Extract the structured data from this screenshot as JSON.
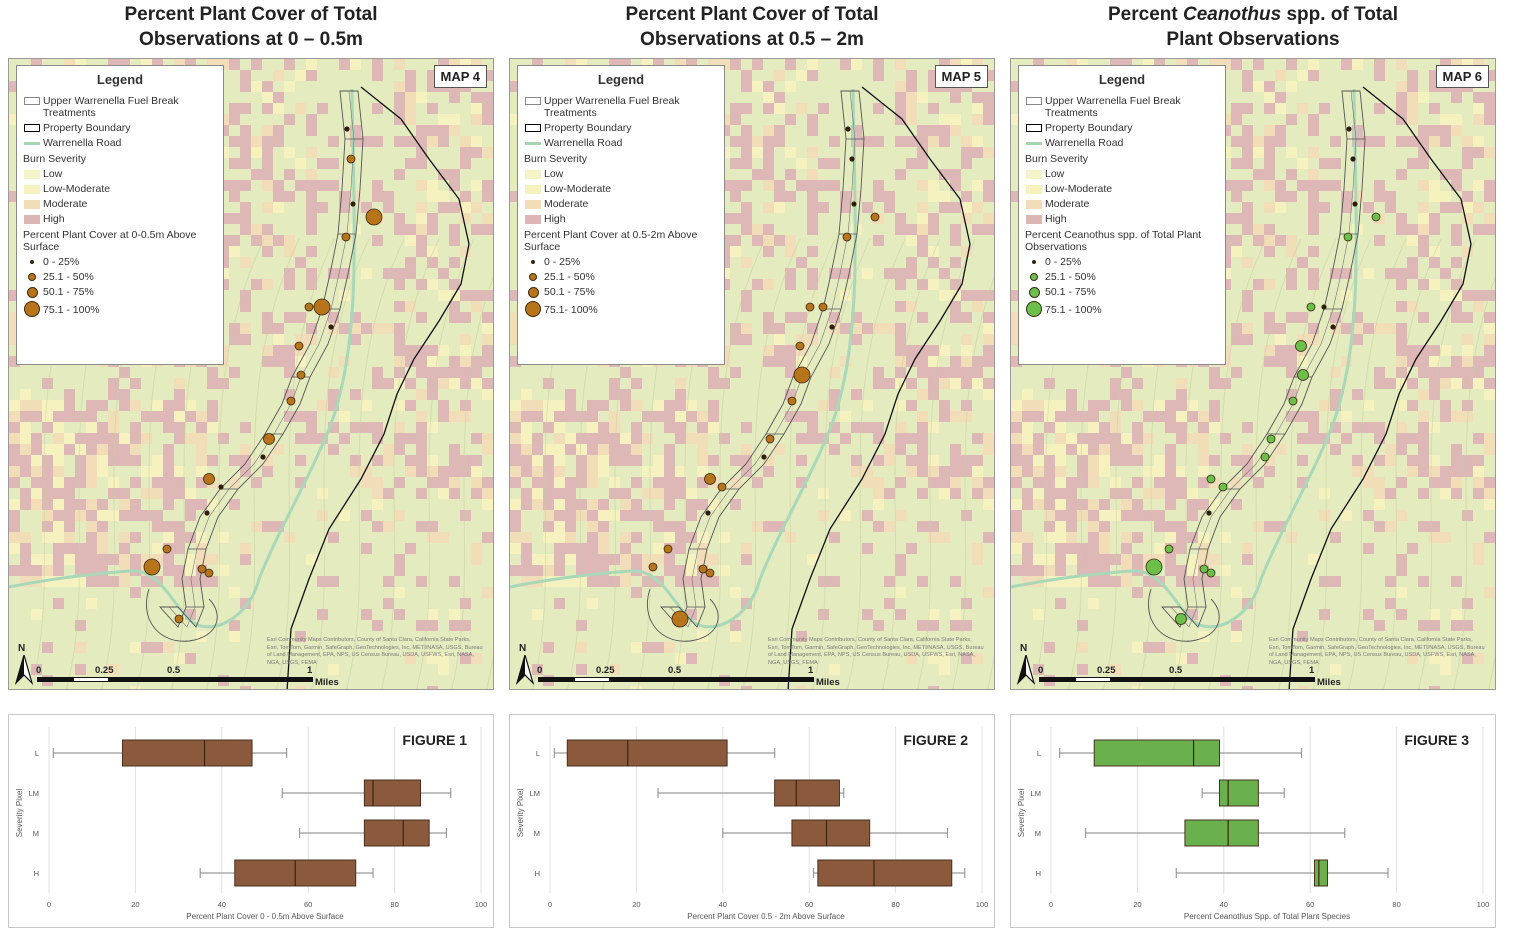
{
  "colors": {
    "brown_fill": "#8b5a3c",
    "green_fill": "#6ab04c",
    "dot_brown": "#b8741a",
    "dot_green": "#6cc04a",
    "sev_low": "#f4f4c8",
    "sev_lowmod": "#f6f2c0",
    "sev_moderate": "#f1ddb8",
    "sev_high": "#dcb5b5"
  },
  "shared_legend": {
    "title": "Legend",
    "fuel_break": "Upper Warrenella Fuel Break Treatments",
    "property": "Property Boundary",
    "road": "Warrenella Road",
    "burn_title": "Burn Severity",
    "burn": [
      "Low",
      "Low-Moderate",
      "Moderate",
      "High"
    ]
  },
  "scalebar": {
    "ticks": [
      "0",
      "0.25",
      "0.5",
      "1"
    ],
    "unit": "Miles"
  },
  "north_label": "N",
  "attribution": "Esri Community Maps Contributors, County of Santa Clara, California State Parks, Esri, TomTom, Garmin, SafeGraph, GeoTechnologies, Inc, METI/NASA, USGS, Bureau of Land Management, EPA, NPS, US Census Bureau, USDA, USFWS, Esri, NASA, NGA, USGS, FEMA",
  "panels": [
    {
      "title_line1": "Percent Plant Cover of Total",
      "title_line2": "Observations at 0 –  0.5m",
      "title_pre": "",
      "title_ital": "",
      "title_post": "",
      "map_label": "MAP 4",
      "point_color": "#b8741a",
      "points_title": "Percent Plant Cover at 0-0.5m Above Surface",
      "point_classes": [
        "0 - 25%",
        "25.1 - 50%",
        "50.1 - 75%",
        "75.1 - 100%"
      ],
      "observations": [
        {
          "site": 1,
          "cls": 0
        },
        {
          "site": 2,
          "cls": 1
        },
        {
          "site": 3,
          "cls": 0
        },
        {
          "site": 4,
          "cls": 3
        },
        {
          "site": 5,
          "cls": 1
        },
        {
          "site": 6,
          "cls": 1
        },
        {
          "site": 7,
          "cls": 3
        },
        {
          "site": 8,
          "cls": 0
        },
        {
          "site": 9,
          "cls": 1
        },
        {
          "site": 10,
          "cls": 1
        },
        {
          "site": 11,
          "cls": 1
        },
        {
          "site": 12,
          "cls": 2
        },
        {
          "site": 13,
          "cls": 0
        },
        {
          "site": 14,
          "cls": 2
        },
        {
          "site": 15,
          "cls": 0
        },
        {
          "site": 16,
          "cls": 0
        },
        {
          "site": 17,
          "cls": 1
        },
        {
          "site": 18,
          "cls": 3
        },
        {
          "site": 19,
          "cls": 1
        },
        {
          "site": 20,
          "cls": 1
        },
        {
          "site": 21,
          "cls": 1
        }
      ],
      "figure": {
        "label": "FIGURE 1",
        "fill": "#8b5a3c",
        "xlabel": "Percent Plant Cover 0 - 0.5m Above Surface",
        "ylabel": "Severity Pixel",
        "categories": [
          "L",
          "LM",
          "M",
          "H"
        ],
        "xlim": [
          0,
          100
        ],
        "xticks": [
          "0",
          "20",
          "40",
          "60",
          "80",
          "100"
        ],
        "boxes": [
          {
            "min": 1,
            "q1": 17,
            "median": 36,
            "q3": 47,
            "max": 55
          },
          {
            "min": 54,
            "q1": 73,
            "median": 75,
            "q3": 86,
            "max": 93
          },
          {
            "min": 58,
            "q1": 73,
            "median": 82,
            "q3": 88,
            "max": 92
          },
          {
            "min": 35,
            "q1": 43,
            "median": 57,
            "q3": 71,
            "max": 75
          }
        ]
      }
    },
    {
      "title_line1": "Percent Plant Cover of Total",
      "title_line2": "Observations at 0.5 –  2m",
      "title_pre": "",
      "title_ital": "",
      "title_post": "",
      "map_label": "MAP 5",
      "point_color": "#b8741a",
      "points_title": "Percent Plant Cover at 0.5-2m Above Surface",
      "point_classes": [
        "0 - 25%",
        "25.1 - 50%",
        "50.1 - 75%",
        "75.1- 100%"
      ],
      "observations": [
        {
          "site": 1,
          "cls": 0
        },
        {
          "site": 2,
          "cls": 0
        },
        {
          "site": 3,
          "cls": 0
        },
        {
          "site": 4,
          "cls": 1
        },
        {
          "site": 5,
          "cls": 1
        },
        {
          "site": 6,
          "cls": 1
        },
        {
          "site": 7,
          "cls": 1
        },
        {
          "site": 8,
          "cls": 0
        },
        {
          "site": 9,
          "cls": 1
        },
        {
          "site": 10,
          "cls": 3
        },
        {
          "site": 11,
          "cls": 1
        },
        {
          "site": 12,
          "cls": 1
        },
        {
          "site": 13,
          "cls": 0
        },
        {
          "site": 14,
          "cls": 2
        },
        {
          "site": 15,
          "cls": 1
        },
        {
          "site": 16,
          "cls": 0
        },
        {
          "site": 17,
          "cls": 1
        },
        {
          "site": 18,
          "cls": 1
        },
        {
          "site": 19,
          "cls": 1
        },
        {
          "site": 20,
          "cls": 1
        },
        {
          "site": 21,
          "cls": 3
        }
      ],
      "figure": {
        "label": "FIGURE 2",
        "fill": "#8b5a3c",
        "xlabel": "Percent Plant Cover 0.5 - 2m Above Surface",
        "ylabel": "Severity Pixel",
        "categories": [
          "L",
          "LM",
          "M",
          "H"
        ],
        "xlim": [
          0,
          100
        ],
        "xticks": [
          "0",
          "20",
          "40",
          "60",
          "80",
          "100"
        ],
        "boxes": [
          {
            "min": 1,
            "q1": 4,
            "median": 18,
            "q3": 41,
            "max": 52
          },
          {
            "min": 25,
            "q1": 52,
            "median": 57,
            "q3": 67,
            "max": 68
          },
          {
            "min": 40,
            "q1": 56,
            "median": 64,
            "q3": 74,
            "max": 92
          },
          {
            "min": 61,
            "q1": 62,
            "median": 75,
            "q3": 93,
            "max": 96
          }
        ]
      }
    },
    {
      "title_line1": "",
      "title_line2": "Plant Observations",
      "title_pre": "Percent ",
      "title_ital": "Ceanothus",
      "title_post": " spp. of Total",
      "map_label": "MAP 6",
      "point_color": "#6cc04a",
      "points_title": "Percent Ceanothus spp. of Total Plant Observations",
      "point_classes": [
        "0 - 25%",
        "25.1 - 50%",
        "50.1 - 75%",
        "75.1 - 100%"
      ],
      "observations": [
        {
          "site": 1,
          "cls": 0
        },
        {
          "site": 2,
          "cls": 0
        },
        {
          "site": 3,
          "cls": 0
        },
        {
          "site": 4,
          "cls": 1
        },
        {
          "site": 5,
          "cls": 1
        },
        {
          "site": 6,
          "cls": 1
        },
        {
          "site": 7,
          "cls": 0
        },
        {
          "site": 8,
          "cls": 0
        },
        {
          "site": 9,
          "cls": 2
        },
        {
          "site": 10,
          "cls": 2
        },
        {
          "site": 11,
          "cls": 1
        },
        {
          "site": 12,
          "cls": 1
        },
        {
          "site": 13,
          "cls": 1
        },
        {
          "site": 14,
          "cls": 1
        },
        {
          "site": 15,
          "cls": 1
        },
        {
          "site": 16,
          "cls": 0
        },
        {
          "site": 17,
          "cls": 1
        },
        {
          "site": 18,
          "cls": 3
        },
        {
          "site": 19,
          "cls": 1
        },
        {
          "site": 20,
          "cls": 1
        },
        {
          "site": 21,
          "cls": 2
        }
      ],
      "figure": {
        "label": "FIGURE 3",
        "fill": "#6ab04c",
        "xlabel": "Percent Ceanothus Spp. of Total Plant Species",
        "ylabel": "Severity Pixel",
        "categories": [
          "L",
          "LM",
          "M",
          "H"
        ],
        "xlim": [
          0,
          100
        ],
        "xticks": [
          "0",
          "20",
          "40",
          "60",
          "80",
          "100"
        ],
        "boxes": [
          {
            "min": 2,
            "q1": 10,
            "median": 33,
            "q3": 39,
            "max": 58
          },
          {
            "min": 35,
            "q1": 39,
            "median": 41,
            "q3": 48,
            "max": 54
          },
          {
            "min": 8,
            "q1": 31,
            "median": 41,
            "q3": 48,
            "max": 68
          },
          {
            "min": 29,
            "q1": 61,
            "median": 62,
            "q3": 64,
            "max": 78
          }
        ]
      }
    }
  ]
}
